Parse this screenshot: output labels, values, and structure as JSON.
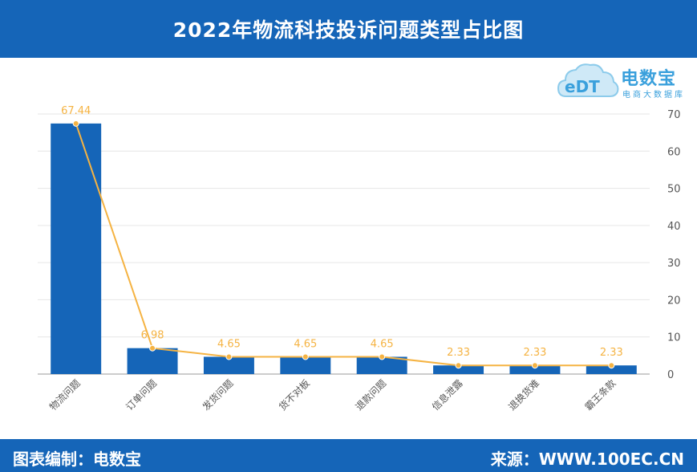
{
  "header": {
    "title": "2022年物流科技投诉问题类型占比图"
  },
  "logo": {
    "brand": "电数宝",
    "sub": "电商大数据库",
    "mark": "eDT"
  },
  "footer": {
    "left": "图表编制：电数宝",
    "right": "来源：WWW.100EC.CN"
  },
  "colors": {
    "header": "#1565b8",
    "bar": "#1565b8",
    "line": "#f5b342",
    "label": "#f5b342"
  },
  "chart_data": {
    "type": "bar",
    "categories": [
      "物流问题",
      "订单问题",
      "发货问题",
      "货不对板",
      "退款问题",
      "信息泄露",
      "退换货难",
      "霸王条款"
    ],
    "values": [
      67.44,
      6.98,
      4.65,
      4.65,
      4.65,
      2.33,
      2.33,
      2.33
    ],
    "data_labels": [
      "67.44",
      "6.98",
      "4.65",
      "4.65",
      "4.65",
      "2.33",
      "2.33",
      "2.33"
    ],
    "overlay": "line",
    "title": "",
    "xlabel": "",
    "ylabel": "",
    "ylim": [
      0,
      70
    ],
    "yticks": [
      0,
      10,
      20,
      30,
      40,
      50,
      60,
      70
    ],
    "y_axis_side": "right",
    "grid": true,
    "legend": "none"
  }
}
